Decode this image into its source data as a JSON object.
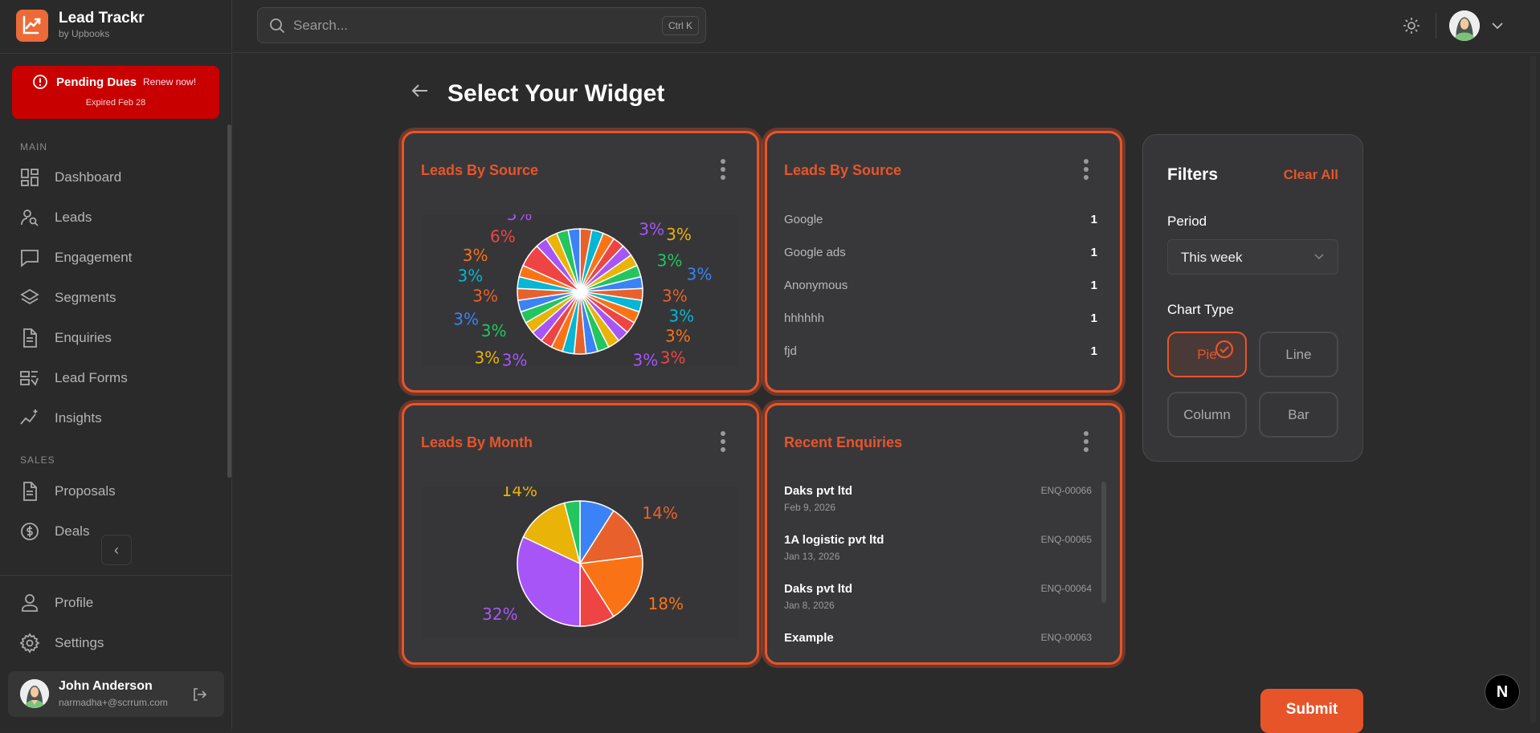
{
  "brand": {
    "name": "Lead Trackr",
    "sub": "by Upbooks"
  },
  "dues": {
    "title": "Pending Dues",
    "renew": "Renew now!",
    "expired": "Expired Feb 28"
  },
  "sidebar": {
    "sections": [
      {
        "label": "MAIN"
      },
      {
        "label": "SALES"
      }
    ],
    "main_items": [
      {
        "label": "Dashboard",
        "icon": "dashboard-icon"
      },
      {
        "label": "Leads",
        "icon": "user-search-icon"
      },
      {
        "label": "Engagement",
        "icon": "chat-icon"
      },
      {
        "label": "Segments",
        "icon": "layers-icon"
      },
      {
        "label": "Enquiries",
        "icon": "document-icon"
      },
      {
        "label": "Lead Forms",
        "icon": "form-icon"
      },
      {
        "label": "Insights",
        "icon": "sparkle-chart-icon"
      }
    ],
    "sales_items": [
      {
        "label": "Proposals",
        "icon": "document-icon"
      },
      {
        "label": "Deals",
        "icon": "dollar-icon"
      }
    ],
    "bottom_items": [
      {
        "label": "Profile",
        "icon": "user-icon"
      },
      {
        "label": "Settings",
        "icon": "gear-icon"
      }
    ],
    "user": {
      "name": "John Anderson",
      "email": "narmadha+@scrrum.com"
    }
  },
  "header": {
    "search_placeholder": "Search...",
    "shortcut": "Ctrl K"
  },
  "page": {
    "title": "Select Your Widget",
    "submit": "Submit"
  },
  "widgets": {
    "source_pie_title": "Leads By Source",
    "source_list_title": "Leads By Source",
    "source_list": [
      {
        "name": "Google",
        "count": "1"
      },
      {
        "name": "Google ads",
        "count": "1"
      },
      {
        "name": "Anonymous",
        "count": "1"
      },
      {
        "name": "hhhhhh",
        "count": "1"
      },
      {
        "name": "fjd",
        "count": "1"
      }
    ],
    "month_pie_title": "Leads By Month",
    "enquiries_title": "Recent Enquiries",
    "enquiries": [
      {
        "name": "Daks pvt ltd",
        "date": "Feb 9, 2026",
        "id": "ENQ-00066"
      },
      {
        "name": "1A logistic pvt ltd",
        "date": "Jan 13, 2026",
        "id": "ENQ-00065"
      },
      {
        "name": "Daks pvt ltd",
        "date": "Jan 8, 2026",
        "id": "ENQ-00064"
      },
      {
        "name": "Example",
        "date": "",
        "id": "ENQ-00063"
      }
    ]
  },
  "filters": {
    "title": "Filters",
    "clear": "Clear All",
    "period_label": "Period",
    "period_value": "This week",
    "chart_type_label": "Chart Type",
    "chart_types": [
      {
        "label": "Pie",
        "selected": true
      },
      {
        "label": "Line",
        "selected": false
      },
      {
        "label": "Column",
        "selected": false
      },
      {
        "label": "Bar",
        "selected": false
      }
    ]
  },
  "colors": {
    "accent": "#e8542a",
    "dues": "#c80000",
    "palette": [
      "#e8612c",
      "#06b6d4",
      "#f97316",
      "#ef4444",
      "#a855f7",
      "#eab308",
      "#22c55e",
      "#3b82f6"
    ]
  },
  "chart_data": [
    {
      "type": "pie",
      "title": "Leads By Source",
      "values": [
        1,
        1,
        1,
        1,
        1,
        1,
        1,
        1,
        1,
        1,
        1,
        1,
        1,
        1,
        1,
        1,
        1,
        1,
        1,
        1,
        1,
        1,
        1,
        1,
        1,
        1,
        1,
        2,
        1,
        1,
        1,
        1
      ],
      "data_labels": "percent"
    },
    {
      "type": "pie",
      "title": "Leads By Month",
      "values": [
        9,
        14,
        18,
        9,
        32,
        14,
        4
      ],
      "colors": [
        "#3b82f6",
        "#e8612c",
        "#f97316",
        "#ef4444",
        "#a855f7",
        "#eab308",
        "#22c55e"
      ],
      "data_labels": "percent"
    }
  ]
}
